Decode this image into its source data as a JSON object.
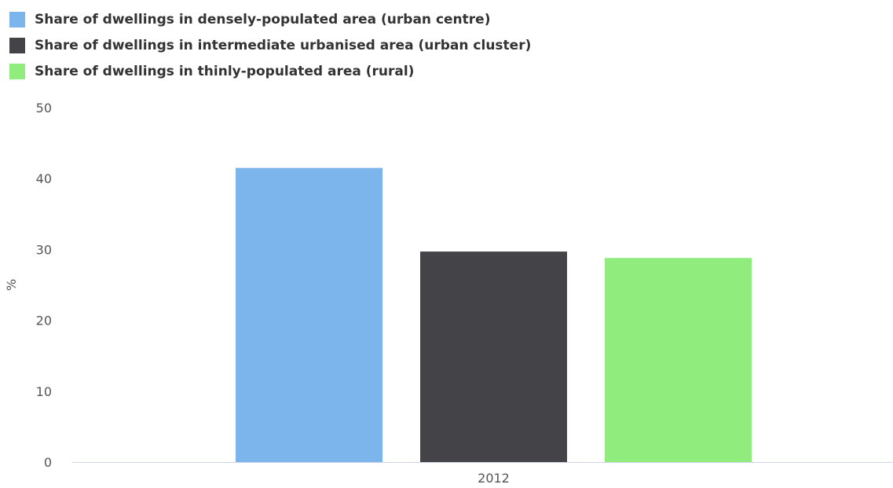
{
  "chart_data": {
    "type": "bar",
    "categories": [
      "2012"
    ],
    "series": [
      {
        "name": "Share of dwellings in densely-populated area (urban centre)",
        "values": [
          41.5
        ],
        "color": "#7cb5ec"
      },
      {
        "name": "Share of dwellings in intermediate urbanised area (urban cluster)",
        "values": [
          29.7
        ],
        "color": "#434348"
      },
      {
        "name": "Share of dwellings in thinly-populated area (rural)",
        "values": [
          28.8
        ],
        "color": "#90ed7d"
      }
    ],
    "ylabel": "%",
    "xlabel": "",
    "title": "",
    "ylim": [
      0,
      50
    ],
    "yticks": [
      0,
      10,
      20,
      30,
      40,
      50
    ],
    "grid": false,
    "legend_position": "top-left"
  }
}
